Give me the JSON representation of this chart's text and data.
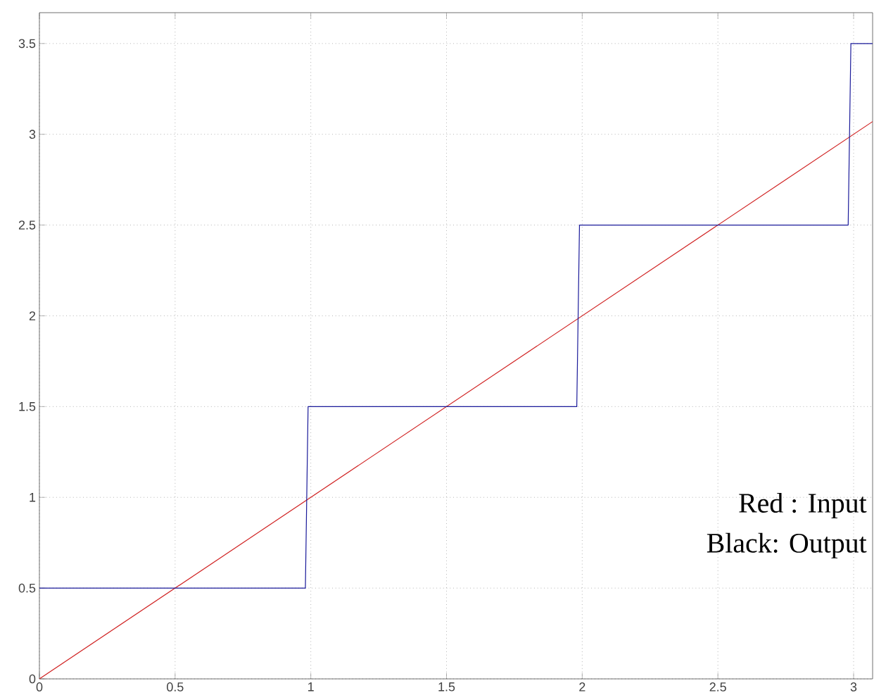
{
  "chart_data": {
    "type": "line",
    "xlim": [
      0,
      3.07
    ],
    "ylim": [
      0,
      3.67
    ],
    "xticks": [
      0,
      0.5,
      1,
      1.5,
      2,
      2.5,
      3
    ],
    "yticks": [
      0,
      0.5,
      1,
      1.5,
      2,
      2.5,
      3,
      3.5
    ],
    "grid": true,
    "marker": "none",
    "line_style": "solid",
    "series": [
      {
        "color": "#d02020",
        "x": [
          0,
          3.07
        ],
        "values": [
          0,
          3.07
        ]
      },
      {
        "color": "#1a1a9a",
        "x": [
          0,
          0.98,
          0.99,
          1.98,
          1.99,
          2.98,
          2.99,
          3.07
        ],
        "values": [
          0.5,
          0.5,
          1.5,
          1.5,
          2.5,
          2.5,
          3.5,
          3.5
        ]
      }
    ],
    "annotations": [
      "Red : Input",
      "Black: Output"
    ]
  }
}
